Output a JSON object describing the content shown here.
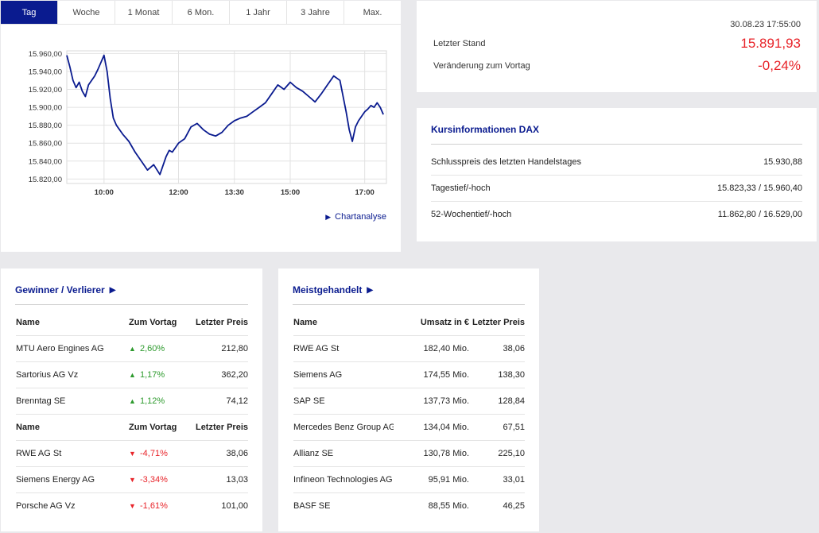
{
  "tabs": [
    "Tag",
    "Woche",
    "1 Monat",
    "6 Mon.",
    "1 Jahr",
    "3 Jahre",
    "Max."
  ],
  "active_tab": 0,
  "chart_link": "Chartanalyse",
  "chart_data": {
    "type": "line",
    "title": "",
    "xlabel": "",
    "ylabel": "",
    "x_ticks": [
      "10:00",
      "12:00",
      "13:30",
      "15:00",
      "17:00"
    ],
    "y_ticks": [
      "15.820,00",
      "15.840,00",
      "15.860,00",
      "15.880,00",
      "15.900,00",
      "15.920,00",
      "15.940,00",
      "15.960,00"
    ],
    "ylim": [
      15815,
      15963
    ],
    "xlim": [
      "09:00",
      "17:35"
    ],
    "grid": true,
    "line_color": "#0a1b8f",
    "series": [
      {
        "x": [
          "09:00",
          "09:05",
          "09:10",
          "09:15",
          "09:20",
          "09:25",
          "09:30",
          "09:35",
          "09:40",
          "09:45",
          "09:50",
          "09:55",
          "10:00",
          "10:05",
          "10:10",
          "10:15",
          "10:20",
          "10:30",
          "10:40",
          "10:50",
          "11:00",
          "11:10",
          "11:20",
          "11:30",
          "11:40",
          "11:45",
          "11:50",
          "11:55",
          "12:00",
          "12:10",
          "12:20",
          "12:30",
          "12:40",
          "12:50",
          "13:00",
          "13:10",
          "13:20",
          "13:30",
          "13:40",
          "13:50",
          "14:00",
          "14:10",
          "14:20",
          "14:30",
          "14:40",
          "14:50",
          "15:00",
          "15:10",
          "15:20",
          "15:30",
          "15:40",
          "15:50",
          "16:00",
          "16:10",
          "16:20",
          "16:30",
          "16:35",
          "16:40",
          "16:45",
          "16:50",
          "16:55",
          "17:00",
          "17:05",
          "17:10",
          "17:15",
          "17:20",
          "17:25",
          "17:30"
        ],
        "values": [
          15958,
          15945,
          15930,
          15922,
          15928,
          15918,
          15912,
          15925,
          15930,
          15935,
          15942,
          15950,
          15958,
          15940,
          15910,
          15888,
          15880,
          15870,
          15862,
          15850,
          15840,
          15830,
          15836,
          15825,
          15845,
          15852,
          15850,
          15855,
          15860,
          15865,
          15878,
          15882,
          15875,
          15870,
          15868,
          15872,
          15880,
          15885,
          15888,
          15890,
          15895,
          15900,
          15905,
          15915,
          15925,
          15920,
          15928,
          15922,
          15918,
          15912,
          15906,
          15915,
          15925,
          15935,
          15930,
          15895,
          15875,
          15862,
          15878,
          15885,
          15890,
          15895,
          15898,
          15902,
          15900,
          15905,
          15900,
          15892
        ]
      }
    ]
  },
  "quote": {
    "timestamp": "30.08.23 17:55:00",
    "last_label": "Letzter Stand",
    "last_value": "15.891,93",
    "change_label": "Veränderung zum Vortag",
    "change_value": "-0,24%",
    "value_color": "#e8242a"
  },
  "info": {
    "title": "Kursinformationen DAX",
    "rows": [
      {
        "label": "Schlusspreis des letzten Handelstages",
        "value": "15.930,88"
      },
      {
        "label": "Tagestief/-hoch",
        "value": "15.823,33 / 15.960,40"
      },
      {
        "label": "52-Wochentief/-hoch",
        "value": "11.862,80 / 16.529,00"
      }
    ]
  },
  "gainers_losers": {
    "title": "Gewinner / Verlierer",
    "header": {
      "name": "Name",
      "change": "Zum Vortag",
      "price": "Letzter Preis"
    },
    "gainers": [
      {
        "name": "MTU Aero Engines AG",
        "change": "2,60%",
        "price": "212,80"
      },
      {
        "name": "Sartorius AG Vz",
        "change": "1,17%",
        "price": "362,20"
      },
      {
        "name": "Brenntag SE",
        "change": "1,12%",
        "price": "74,12"
      }
    ],
    "losers": [
      {
        "name": "RWE AG St",
        "change": "-4,71%",
        "price": "38,06"
      },
      {
        "name": "Siemens Energy AG",
        "change": "-3,34%",
        "price": "13,03"
      },
      {
        "name": "Porsche AG Vz",
        "change": "-1,61%",
        "price": "101,00"
      }
    ],
    "up_color": "#2d9a2d",
    "down_color": "#e8242a",
    "up_icon": "triangle-up-icon",
    "down_icon": "triangle-down-icon"
  },
  "most_traded": {
    "title": "Meistgehandelt",
    "header": {
      "name": "Name",
      "volume": "Umsatz in €",
      "price": "Letzter Preis"
    },
    "rows": [
      {
        "name": "RWE AG St",
        "volume": "182,40 Mio.",
        "price": "38,06"
      },
      {
        "name": "Siemens AG",
        "volume": "174,55 Mio.",
        "price": "138,30"
      },
      {
        "name": "SAP SE",
        "volume": "137,73 Mio.",
        "price": "128,84"
      },
      {
        "name": "Mercedes Benz Group AG ...",
        "volume": "134,04 Mio.",
        "price": "67,51"
      },
      {
        "name": "Allianz SE",
        "volume": "130,78 Mio.",
        "price": "225,10"
      },
      {
        "name": "Infineon Technologies AG",
        "volume": "95,91 Mio.",
        "price": "33,01"
      },
      {
        "name": "BASF SE",
        "volume": "88,55 Mio.",
        "price": "46,25"
      }
    ]
  },
  "accent_color": "#0a1b8f"
}
